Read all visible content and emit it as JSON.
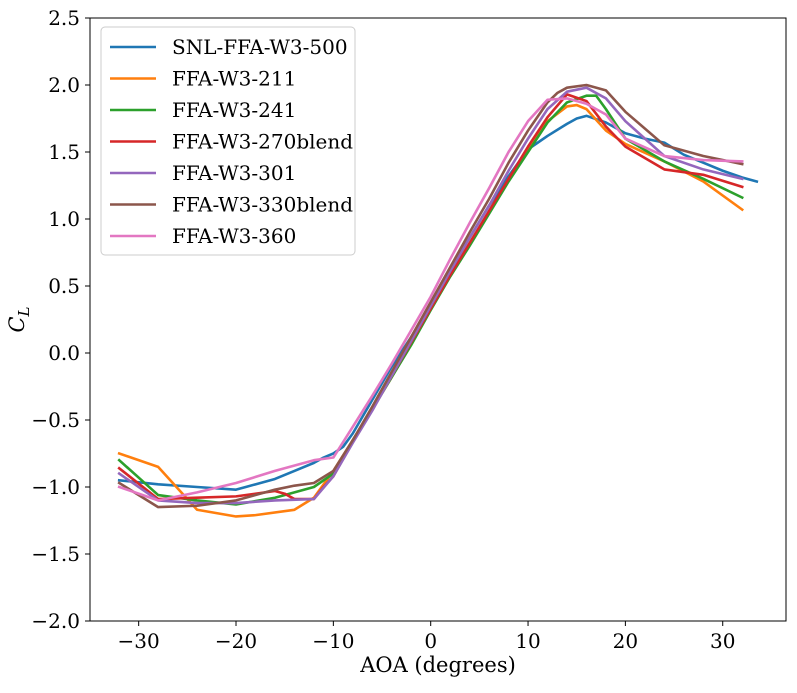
{
  "chart_data": {
    "type": "line",
    "xlabel": "AOA (degrees)",
    "ylabel": "C_L",
    "xlim": [
      -35,
      36.5
    ],
    "ylim": [
      -2.0,
      2.5
    ],
    "xticks": [
      -30,
      -20,
      -10,
      0,
      10,
      20,
      30
    ],
    "yticks": [
      -2.0,
      -1.5,
      -1.0,
      -0.5,
      0.0,
      0.5,
      1.0,
      1.5,
      2.0,
      2.5
    ],
    "grid": false,
    "legend_position": "upper-left",
    "series": [
      {
        "name": "SNL-FFA-W3-500",
        "color": "#1f77b4",
        "x": [
          -32,
          -28,
          -24,
          -20,
          -19,
          -18,
          -16,
          -14,
          -12,
          -11,
          -10,
          -9,
          -8,
          -6,
          -4,
          -2,
          0,
          2,
          4,
          6,
          8,
          10,
          11,
          12,
          14,
          15,
          16,
          18,
          20,
          22,
          24,
          26,
          28,
          30,
          32,
          33.5
        ],
        "y": [
          -0.95,
          -0.98,
          -1.0,
          -1.02,
          -1.0,
          -0.98,
          -0.94,
          -0.88,
          -0.82,
          -0.78,
          -0.75,
          -0.7,
          -0.6,
          -0.35,
          -0.1,
          0.12,
          0.35,
          0.62,
          0.86,
          1.1,
          1.32,
          1.52,
          1.57,
          1.62,
          1.71,
          1.75,
          1.77,
          1.72,
          1.64,
          1.6,
          1.57,
          1.48,
          1.42,
          1.36,
          1.31,
          1.28
        ]
      },
      {
        "name": "FFA-W3-211",
        "color": "#ff7f0e",
        "x": [
          -32,
          -28,
          -24,
          -20,
          -18,
          -14,
          -12,
          -10,
          -8,
          -6,
          -4,
          -2,
          0,
          2,
          4,
          6,
          8,
          10,
          12,
          14,
          15,
          16,
          18,
          20,
          24,
          28,
          32
        ],
        "y": [
          -0.75,
          -0.85,
          -1.17,
          -1.22,
          -1.21,
          -1.17,
          -1.08,
          -0.88,
          -0.65,
          -0.42,
          -0.18,
          0.08,
          0.33,
          0.58,
          0.82,
          1.05,
          1.3,
          1.52,
          1.73,
          1.84,
          1.85,
          1.82,
          1.66,
          1.56,
          1.43,
          1.28,
          1.07
        ]
      },
      {
        "name": "FFA-W3-241",
        "color": "#2ca02c",
        "x": [
          -32,
          -28,
          -24,
          -20,
          -16,
          -12,
          -10,
          -8,
          -6,
          -4,
          -2,
          0,
          2,
          4,
          6,
          8,
          10,
          12,
          14,
          16,
          17,
          18,
          20,
          24,
          28,
          32
        ],
        "y": [
          -0.8,
          -1.06,
          -1.1,
          -1.13,
          -1.08,
          -1.0,
          -0.9,
          -0.65,
          -0.42,
          -0.18,
          0.06,
          0.32,
          0.57,
          0.8,
          1.04,
          1.28,
          1.5,
          1.72,
          1.87,
          1.92,
          1.92,
          1.82,
          1.6,
          1.43,
          1.3,
          1.16
        ]
      },
      {
        "name": "FFA-W3-270blend",
        "color": "#d62728",
        "x": [
          -32,
          -28,
          -24,
          -20,
          -16,
          -15,
          -14,
          -12,
          -11,
          -10,
          -8,
          -6,
          -4,
          -2,
          0,
          2,
          4,
          6,
          8,
          10,
          12,
          14,
          16,
          18,
          20,
          24,
          28,
          32
        ],
        "y": [
          -0.86,
          -1.09,
          -1.08,
          -1.07,
          -1.03,
          -1.05,
          -1.09,
          -1.09,
          -1.0,
          -0.92,
          -0.66,
          -0.42,
          -0.17,
          0.08,
          0.33,
          0.58,
          0.82,
          1.06,
          1.3,
          1.54,
          1.76,
          1.93,
          1.88,
          1.69,
          1.54,
          1.37,
          1.33,
          1.24
        ]
      },
      {
        "name": "FFA-W3-301",
        "color": "#9467bd",
        "x": [
          -32,
          -28,
          -24,
          -20,
          -16,
          -12,
          -10,
          -8,
          -6,
          -4,
          -2,
          0,
          2,
          4,
          6,
          8,
          10,
          12,
          14,
          16,
          18,
          20,
          24,
          28,
          32
        ],
        "y": [
          -0.9,
          -1.1,
          -1.12,
          -1.12,
          -1.1,
          -1.09,
          -0.92,
          -0.67,
          -0.43,
          -0.17,
          0.09,
          0.35,
          0.61,
          0.86,
          1.1,
          1.36,
          1.6,
          1.82,
          1.95,
          1.98,
          1.9,
          1.73,
          1.47,
          1.37,
          1.3
        ]
      },
      {
        "name": "FFA-W3-330blend",
        "color": "#8c564b",
        "x": [
          -32,
          -28,
          -24,
          -20,
          -16,
          -14,
          -12,
          -10,
          -8,
          -6,
          -4,
          -2,
          0,
          2,
          4,
          6,
          8,
          10,
          12,
          13,
          14,
          16,
          18,
          20,
          24,
          28,
          32
        ],
        "y": [
          -0.97,
          -1.15,
          -1.14,
          -1.1,
          -1.02,
          -0.99,
          -0.97,
          -0.88,
          -0.65,
          -0.4,
          -0.14,
          0.12,
          0.38,
          0.64,
          0.9,
          1.15,
          1.42,
          1.66,
          1.87,
          1.94,
          1.98,
          2.0,
          1.96,
          1.8,
          1.55,
          1.47,
          1.41
        ]
      },
      {
        "name": "FFA-W3-360",
        "color": "#e377c2",
        "x": [
          -32,
          -28,
          -24,
          -20,
          -16,
          -12,
          -10,
          -8,
          -6,
          -4,
          -2,
          0,
          2,
          4,
          6,
          8,
          10,
          12,
          14,
          16,
          18,
          20,
          24,
          28,
          32
        ],
        "y": [
          -1.0,
          -1.1,
          -1.04,
          -0.97,
          -0.88,
          -0.8,
          -0.78,
          -0.55,
          -0.32,
          -0.08,
          0.17,
          0.42,
          0.7,
          0.97,
          1.23,
          1.5,
          1.73,
          1.89,
          1.9,
          1.86,
          1.78,
          1.6,
          1.47,
          1.44,
          1.43
        ]
      }
    ]
  }
}
